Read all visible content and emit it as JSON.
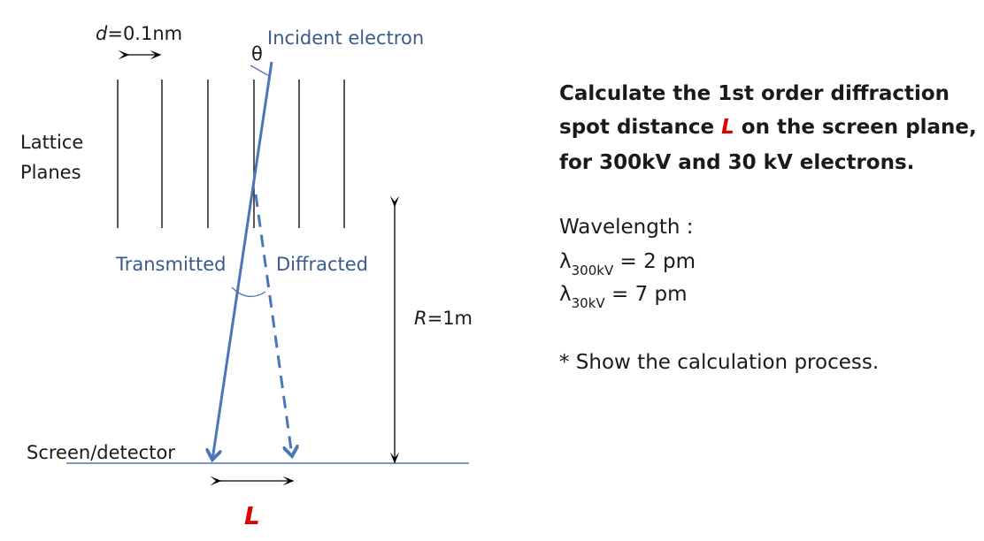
{
  "diagram": {
    "spacing_label": {
      "symbol": "d",
      "text": "=0.1nm"
    },
    "angle_label": "θ",
    "incident_label": "Incident electron",
    "lattice_label": [
      "Lattice",
      "Planes"
    ],
    "transmitted_label": "Transmitted",
    "diffracted_label": "Diffracted",
    "distance_label": {
      "symbol": "R",
      "text": "=1m"
    },
    "screen_label": "Screen/detector",
    "spot_label": "L"
  },
  "question": {
    "line1": "Calculate the 1st order diffraction",
    "line2_before": "spot distance ",
    "line2_symbol": "L",
    "line2_after": " on the screen plane,",
    "line3": "for 300kV and 30 kV electrons."
  },
  "wavelengths": {
    "heading": "Wavelength :",
    "items": [
      {
        "symbol": "λ",
        "subscript": "300kV",
        "text": " = 2 pm"
      },
      {
        "symbol": "λ",
        "subscript": "30kV",
        "text": " = 7 pm"
      }
    ]
  },
  "note": "* Show the calculation process."
}
